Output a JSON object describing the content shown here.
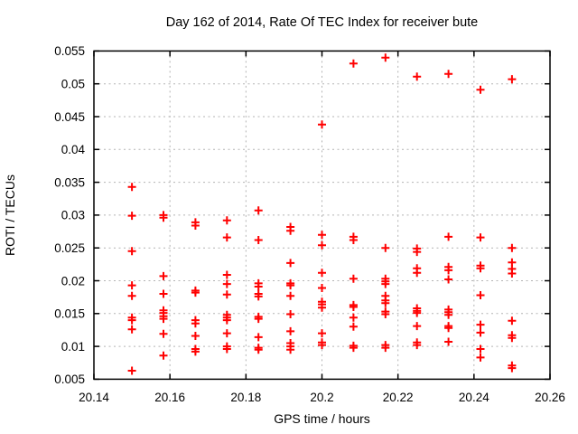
{
  "chart_data": {
    "type": "scatter",
    "title": "Day 162 of 2014, Rate Of TEC Index for receiver bute",
    "xlabel": "GPS time / hours",
    "ylabel": "ROTI / TECUs",
    "xlim": [
      20.14,
      20.26
    ],
    "ylim": [
      0.005,
      0.055
    ],
    "xticks": {
      "values": [
        20.14,
        20.16,
        20.18,
        20.2,
        20.22,
        20.24,
        20.26
      ],
      "labels": [
        "20.14",
        "20.16",
        "20.18",
        "20.2",
        "20.22",
        "20.24",
        "20.26"
      ]
    },
    "yticks": {
      "values": [
        0.005,
        0.01,
        0.015,
        0.02,
        0.025,
        0.03,
        0.035,
        0.04,
        0.045,
        0.05,
        0.055
      ],
      "labels": [
        "0.005",
        "0.01",
        "0.015",
        "0.02",
        "0.025",
        "0.03",
        "0.035",
        "0.04",
        "0.045",
        "0.05",
        "0.055"
      ]
    },
    "grid": true,
    "legend_position": "none",
    "marker": {
      "shape": "plus",
      "color": "#ff0000",
      "size": 9,
      "stroke_width": 2
    },
    "grid_color": "#b3b3b3",
    "border_color": "#000000",
    "background_color": "#ffffff",
    "series": [
      {
        "name": "ROTI",
        "points": [
          [
            20.15,
            0.0343
          ],
          [
            20.15,
            0.0299
          ],
          [
            20.15,
            0.0245
          ],
          [
            20.15,
            0.0193
          ],
          [
            20.15,
            0.0177
          ],
          [
            20.15,
            0.0144
          ],
          [
            20.15,
            0.014
          ],
          [
            20.15,
            0.0126
          ],
          [
            20.15,
            0.0063
          ],
          [
            20.1583,
            0.03
          ],
          [
            20.1583,
            0.0296
          ],
          [
            20.1583,
            0.0207
          ],
          [
            20.1583,
            0.018
          ],
          [
            20.1583,
            0.0155
          ],
          [
            20.1583,
            0.0151
          ],
          [
            20.1583,
            0.0146
          ],
          [
            20.1583,
            0.0142
          ],
          [
            20.1583,
            0.0119
          ],
          [
            20.1583,
            0.0086
          ],
          [
            20.1667,
            0.0289
          ],
          [
            20.1667,
            0.0284
          ],
          [
            20.1667,
            0.0185
          ],
          [
            20.1667,
            0.0182
          ],
          [
            20.1667,
            0.014
          ],
          [
            20.1667,
            0.0135
          ],
          [
            20.1667,
            0.0116
          ],
          [
            20.1667,
            0.0096
          ],
          [
            20.1667,
            0.0092
          ],
          [
            20.175,
            0.0292
          ],
          [
            20.175,
            0.0266
          ],
          [
            20.175,
            0.0209
          ],
          [
            20.175,
            0.0195
          ],
          [
            20.175,
            0.0179
          ],
          [
            20.175,
            0.0148
          ],
          [
            20.175,
            0.0144
          ],
          [
            20.175,
            0.014
          ],
          [
            20.175,
            0.012
          ],
          [
            20.175,
            0.01
          ],
          [
            20.175,
            0.0096
          ],
          [
            20.1833,
            0.0307
          ],
          [
            20.1833,
            0.0262
          ],
          [
            20.1833,
            0.0196
          ],
          [
            20.1833,
            0.0191
          ],
          [
            20.1833,
            0.018
          ],
          [
            20.1833,
            0.0176
          ],
          [
            20.1833,
            0.0145
          ],
          [
            20.1833,
            0.0142
          ],
          [
            20.1833,
            0.0114
          ],
          [
            20.1833,
            0.0098
          ],
          [
            20.1833,
            0.0095
          ],
          [
            20.1917,
            0.0282
          ],
          [
            20.1917,
            0.0276
          ],
          [
            20.1917,
            0.0227
          ],
          [
            20.1917,
            0.0196
          ],
          [
            20.1917,
            0.0193
          ],
          [
            20.1917,
            0.0177
          ],
          [
            20.1917,
            0.0149
          ],
          [
            20.1917,
            0.0123
          ],
          [
            20.1917,
            0.0105
          ],
          [
            20.1917,
            0.01
          ],
          [
            20.1917,
            0.0095
          ],
          [
            20.2,
            0.0438
          ],
          [
            20.2,
            0.027
          ],
          [
            20.2,
            0.0254
          ],
          [
            20.2,
            0.0212
          ],
          [
            20.2,
            0.0189
          ],
          [
            20.2,
            0.0168
          ],
          [
            20.2,
            0.0164
          ],
          [
            20.2,
            0.0159
          ],
          [
            20.2,
            0.012
          ],
          [
            20.2,
            0.0106
          ],
          [
            20.2,
            0.0102
          ],
          [
            20.2083,
            0.0531
          ],
          [
            20.2083,
            0.0267
          ],
          [
            20.2083,
            0.0262
          ],
          [
            20.2083,
            0.0203
          ],
          [
            20.2083,
            0.0163
          ],
          [
            20.2083,
            0.016
          ],
          [
            20.2083,
            0.0144
          ],
          [
            20.2083,
            0.013
          ],
          [
            20.2083,
            0.0101
          ],
          [
            20.2083,
            0.0098
          ],
          [
            20.2167,
            0.054
          ],
          [
            20.2167,
            0.025
          ],
          [
            20.2167,
            0.0203
          ],
          [
            20.2167,
            0.0199
          ],
          [
            20.2167,
            0.0195
          ],
          [
            20.2167,
            0.0177
          ],
          [
            20.2167,
            0.017
          ],
          [
            20.2167,
            0.0166
          ],
          [
            20.2167,
            0.0153
          ],
          [
            20.2167,
            0.0149
          ],
          [
            20.2167,
            0.0102
          ],
          [
            20.2167,
            0.0098
          ],
          [
            20.225,
            0.0511
          ],
          [
            20.225,
            0.0249
          ],
          [
            20.225,
            0.0244
          ],
          [
            20.225,
            0.0219
          ],
          [
            20.225,
            0.0212
          ],
          [
            20.225,
            0.0158
          ],
          [
            20.225,
            0.0154
          ],
          [
            20.225,
            0.0151
          ],
          [
            20.225,
            0.0131
          ],
          [
            20.225,
            0.0106
          ],
          [
            20.225,
            0.0102
          ],
          [
            20.2333,
            0.0515
          ],
          [
            20.2333,
            0.0267
          ],
          [
            20.2333,
            0.0221
          ],
          [
            20.2333,
            0.0216
          ],
          [
            20.2333,
            0.0202
          ],
          [
            20.2333,
            0.0156
          ],
          [
            20.2333,
            0.0152
          ],
          [
            20.2333,
            0.0148
          ],
          [
            20.2333,
            0.0131
          ],
          [
            20.2333,
            0.0128
          ],
          [
            20.2333,
            0.0107
          ],
          [
            20.2417,
            0.0491
          ],
          [
            20.2417,
            0.0266
          ],
          [
            20.2417,
            0.0223
          ],
          [
            20.2417,
            0.0219
          ],
          [
            20.2417,
            0.0178
          ],
          [
            20.2417,
            0.0133
          ],
          [
            20.2417,
            0.0121
          ],
          [
            20.2417,
            0.0096
          ],
          [
            20.2417,
            0.0083
          ],
          [
            20.25,
            0.0507
          ],
          [
            20.25,
            0.025
          ],
          [
            20.25,
            0.0228
          ],
          [
            20.25,
            0.0218
          ],
          [
            20.25,
            0.0211
          ],
          [
            20.25,
            0.0139
          ],
          [
            20.25,
            0.0117
          ],
          [
            20.25,
            0.0113
          ],
          [
            20.25,
            0.0071
          ],
          [
            20.25,
            0.0067
          ]
        ]
      }
    ]
  }
}
